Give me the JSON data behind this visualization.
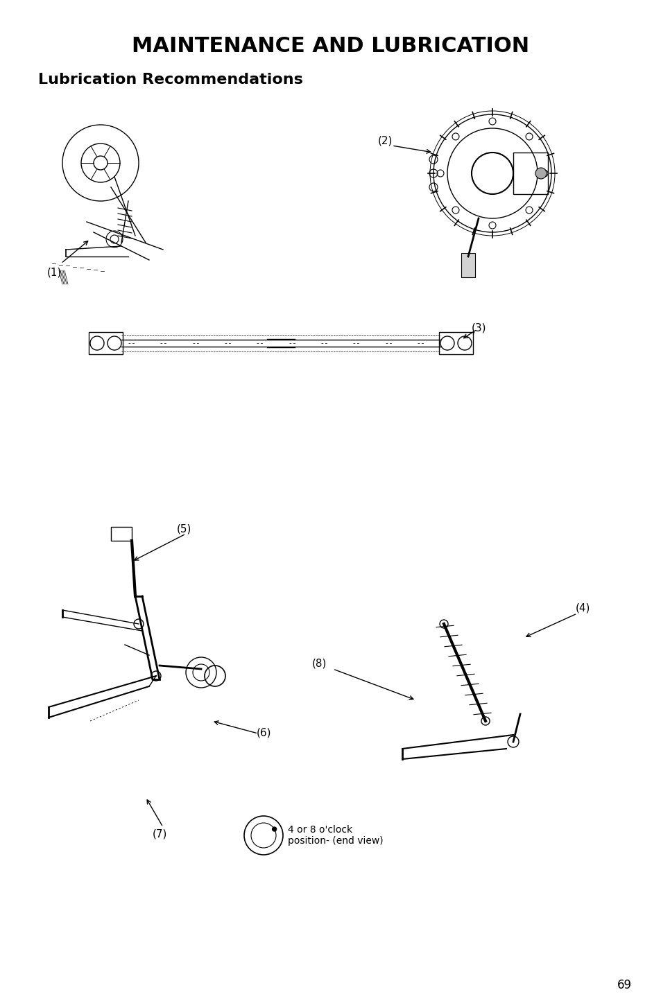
{
  "title": "MAINTENANCE AND LUBRICATION",
  "subtitle": "Lubrication Recommendations",
  "page_number": "69",
  "bg_color": "#ffffff",
  "text_color": "#000000",
  "title_fontsize": 22,
  "subtitle_fontsize": 16,
  "page_num_fontsize": 12,
  "fig_width": 9.54,
  "fig_height": 14.54,
  "dpi": 100,
  "label1": "(1)",
  "label2": "(2)",
  "label3": "(3)",
  "label4": "(4)",
  "label5": "(5)",
  "label6": "(6)",
  "label7": "(7)",
  "label8": "(8)",
  "annotation": "4 or 8 o'clock\nposition- (end view)"
}
